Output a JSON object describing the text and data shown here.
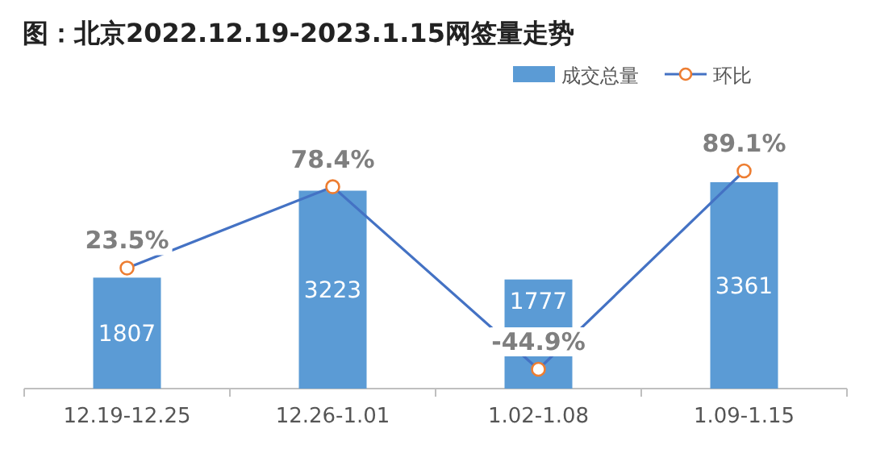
{
  "chart_data": {
    "type": "bar",
    "title": "图：北京2022.12.19-2023.1.15网签量走势",
    "categories": [
      "12.19-12.25",
      "12.26-1.01",
      "1.02-1.08",
      "1.09-1.15"
    ],
    "series": [
      {
        "name": "成交总量",
        "type": "bar",
        "color": "#5b9bd5",
        "values": [
          1807,
          3223,
          1777,
          3361
        ]
      },
      {
        "name": "环比",
        "type": "line",
        "axis": "y2",
        "color": "#4472c4",
        "values": [
          23.5,
          78.4,
          -44.9,
          89.1
        ],
        "value_labels": [
          "23.5%",
          "78.4%",
          "-44.9%",
          "89.1%"
        ]
      }
    ],
    "data_labels": true,
    "legend": "top right",
    "marker": "circle",
    "grid": false
  }
}
